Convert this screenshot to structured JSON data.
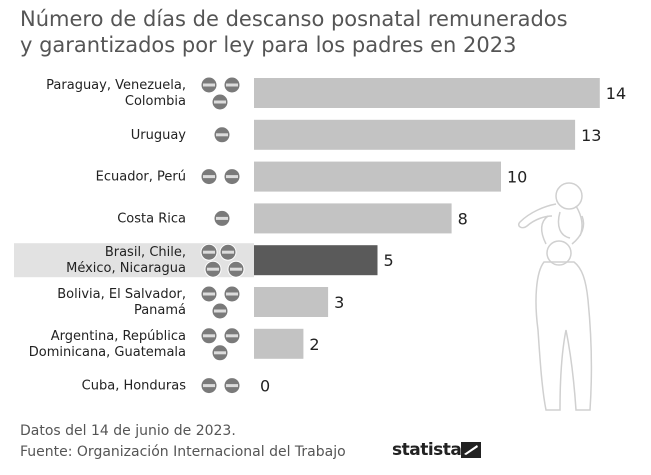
{
  "title_lines": [
    "Número de días de descanso posnatal remunerados",
    "y garantizados por ley para los padres en 2023"
  ],
  "footer": {
    "date_note": "Datos del 14 de junio de 2023.",
    "source": "Fuente: Organización Internacional del Trabajo"
  },
  "brand": "statista",
  "colors": {
    "bar": "#c3c3c3",
    "bar_highlight": "#5a5a5a",
    "highlight_band": "#e2e2e2",
    "flag": "#7a7a7a"
  },
  "chart_data": {
    "type": "bar",
    "orientation": "horizontal",
    "categories": [
      [
        "Paraguay, Venezuela,",
        "Colombia"
      ],
      [
        "Uruguay"
      ],
      [
        "Ecuador, Perú"
      ],
      [
        "Costa Rica"
      ],
      [
        "Brasil, Chile,",
        "México, Nicaragua"
      ],
      [
        "Bolivia, El Salvador,",
        "Panamá"
      ],
      [
        "Argentina, República",
        "Dominicana, Guatemala"
      ],
      [
        "Cuba, Honduras"
      ]
    ],
    "values": [
      14,
      13,
      10,
      8,
      5,
      3,
      2,
      0
    ],
    "flag_counts": [
      3,
      1,
      2,
      1,
      4,
      3,
      3,
      2
    ],
    "highlight_index": 4,
    "xlim": [
      0,
      14
    ]
  }
}
